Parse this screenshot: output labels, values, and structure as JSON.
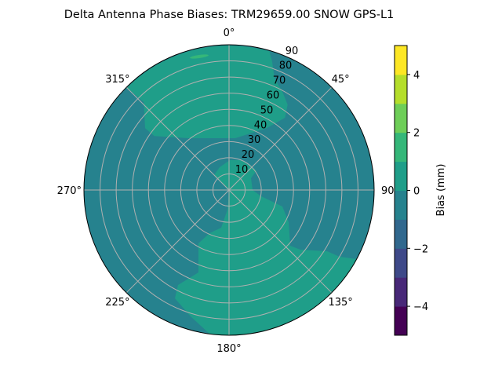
{
  "chart_data": {
    "type": "polar-contour",
    "title": "Delta Antenna Phase Biases: TRM29659.00     SNOW GPS-L1",
    "angular_ticks": [
      "0°",
      "45°",
      "90°",
      "135°",
      "180°",
      "225°",
      "270°",
      "315°"
    ],
    "radial_ticks": [
      "10",
      "20",
      "30",
      "40",
      "50",
      "60",
      "70",
      "80",
      "90"
    ],
    "radial_range": [
      0,
      90
    ],
    "grid": true,
    "colorbar": {
      "label": "Bias (mm)",
      "range": [
        -5,
        5
      ],
      "levels": [
        -5,
        -4,
        -3,
        -2,
        -1,
        0,
        1,
        2,
        3,
        4,
        5
      ],
      "ticks": [
        -4,
        -2,
        0,
        2,
        4
      ],
      "tick_labels": [
        "−4",
        "−2",
        "0",
        "2",
        "4"
      ],
      "colors": [
        "#440154",
        "#482878",
        "#3e4989",
        "#31688e",
        "#26828e",
        "#1f9e89",
        "#35b779",
        "#6ece58",
        "#b5de2b",
        "#fde725"
      ]
    },
    "regions": [
      {
        "level_range": [
          -1,
          0
        ],
        "color": "#26828e",
        "description": "background"
      },
      {
        "level_range": [
          0,
          1
        ],
        "color": "#1f9e89",
        "description": "north lobe"
      },
      {
        "level_range": [
          0,
          1
        ],
        "color": "#1f9e89",
        "description": "south lobe"
      },
      {
        "level_range": [
          1,
          2
        ],
        "color": "#35b779",
        "description": "small patch near north edge"
      }
    ]
  }
}
